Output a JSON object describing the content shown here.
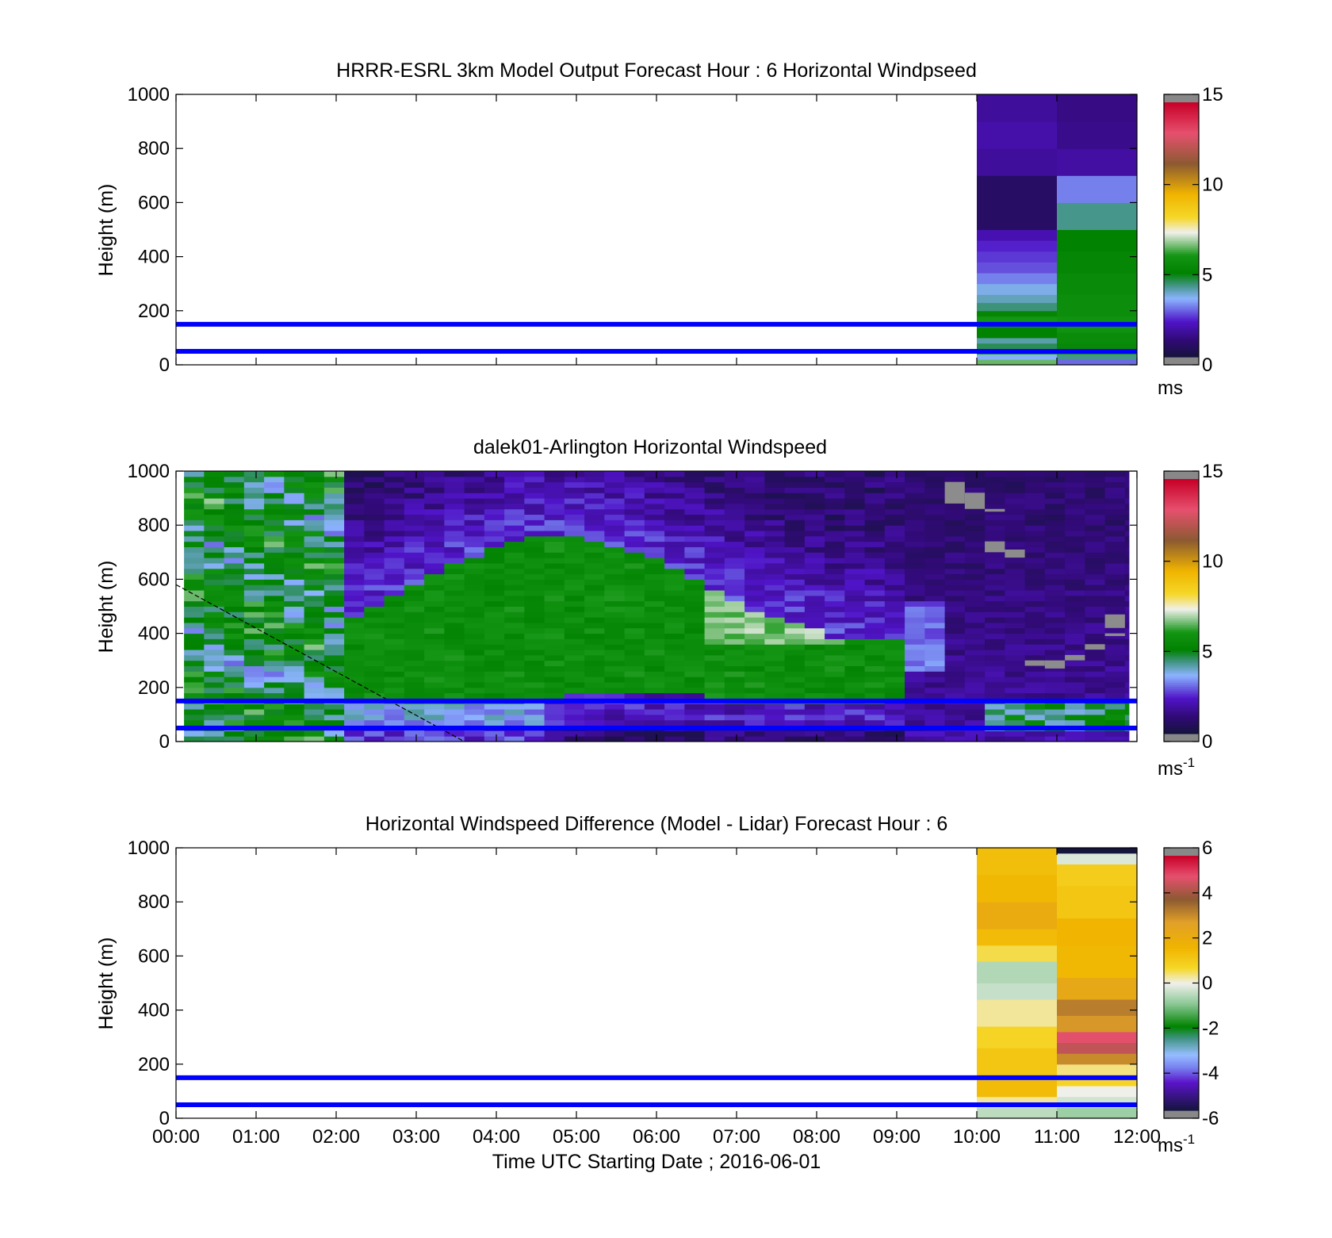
{
  "figure": {
    "xlabel": "Time UTC  Starting Date ; 2016-06-01",
    "x_ticks": [
      "00:00",
      "01:00",
      "02:00",
      "03:00",
      "04:00",
      "05:00",
      "06:00",
      "07:00",
      "08:00",
      "09:00",
      "10:00",
      "11:00",
      "12:00"
    ],
    "y_ticks": [
      "0",
      "200",
      "400",
      "600",
      "800",
      "1000"
    ],
    "ylabel": "Height (m)",
    "reference_lines_m": [
      50,
      150
    ],
    "reference_line_color": "#0000ff"
  },
  "chart_data": [
    {
      "type": "heatmap",
      "title": "HRRR-ESRL 3km Model Output   Forecast Hour : 6 Horizontal Windpseed",
      "ylabel": "Height (m)",
      "xlim_hours": [
        0,
        12
      ],
      "ylim": [
        0,
        1000
      ],
      "colorbar": {
        "min": 0,
        "max": 15,
        "ticks": [
          "0",
          "5",
          "10",
          "15"
        ],
        "unit": "ms",
        "unit_sup": "",
        "palette": "windspeed"
      },
      "columns": [
        {
          "x_start_h": 10,
          "x_end_h": 11,
          "cells": [
            [
              0,
              20,
              6.5
            ],
            [
              20,
              40,
              3.5
            ],
            [
              40,
              60,
              5.5
            ],
            [
              60,
              80,
              4.5
            ],
            [
              80,
              100,
              4.0
            ],
            [
              100,
              140,
              5.0
            ],
            [
              140,
              180,
              6.0
            ],
            [
              180,
              200,
              5.2
            ],
            [
              200,
              230,
              4.3
            ],
            [
              230,
              260,
              3.9
            ],
            [
              260,
              300,
              3.6
            ],
            [
              300,
              340,
              3.0
            ],
            [
              340,
              380,
              2.6
            ],
            [
              380,
              420,
              2.4
            ],
            [
              420,
              460,
              2.2
            ],
            [
              460,
              500,
              1.8
            ],
            [
              500,
              700,
              0.7
            ],
            [
              700,
              800,
              1.5
            ],
            [
              800,
              900,
              1.7
            ],
            [
              900,
              1000,
              1.5
            ]
          ]
        },
        {
          "x_start_h": 11,
          "x_end_h": 12,
          "cells": [
            [
              0,
              20,
              2.8
            ],
            [
              20,
              40,
              4.2
            ],
            [
              40,
              60,
              5.5
            ],
            [
              60,
              80,
              5.3
            ],
            [
              80,
              120,
              5.5
            ],
            [
              120,
              180,
              5.8
            ],
            [
              180,
              260,
              5.6
            ],
            [
              260,
              340,
              5.4
            ],
            [
              340,
              420,
              5.2
            ],
            [
              420,
              500,
              5.0
            ],
            [
              500,
              600,
              4.2
            ],
            [
              600,
              700,
              3.0
            ],
            [
              700,
              800,
              1.6
            ],
            [
              800,
              900,
              1.3
            ],
            [
              900,
              1000,
              1.2
            ]
          ]
        }
      ]
    },
    {
      "type": "heatmap",
      "title": "dalek01-Arlington  Horizontal Windspeed",
      "ylabel": "Height (m)",
      "xlim_hours": [
        0,
        12
      ],
      "ylim": [
        0,
        1000
      ],
      "colorbar": {
        "min": 0,
        "max": 15,
        "ticks": [
          "0",
          "5",
          "10",
          "15"
        ],
        "unit": "ms",
        "unit_sup": "-1",
        "palette": "windspeed"
      },
      "lidar_range_h": [
        0.1,
        11.9
      ],
      "missing_patches": [
        {
          "x_h": [
            9.6,
            9.85
          ],
          "y": [
            880,
            960
          ]
        },
        {
          "x_h": [
            9.85,
            10.1
          ],
          "y": [
            860,
            920
          ]
        },
        {
          "x_h": [
            10.1,
            10.35
          ],
          "y": [
            850,
            860
          ]
        },
        {
          "x_h": [
            10.1,
            10.35
          ],
          "y": [
            700,
            740
          ]
        },
        {
          "x_h": [
            10.35,
            10.6
          ],
          "y": [
            680,
            710
          ]
        },
        {
          "x_h": [
            10.6,
            10.85
          ],
          "y": [
            280,
            300
          ]
        },
        {
          "x_h": [
            10.85,
            11.1
          ],
          "y": [
            270,
            300
          ]
        },
        {
          "x_h": [
            11.1,
            11.35
          ],
          "y": [
            300,
            320
          ]
        },
        {
          "x_h": [
            11.35,
            11.6
          ],
          "y": [
            340,
            360
          ]
        },
        {
          "x_h": [
            11.6,
            11.85
          ],
          "y": [
            420,
            470
          ]
        },
        {
          "x_h": [
            11.6,
            11.85
          ],
          "y": [
            390,
            400
          ]
        }
      ],
      "dashed_line": {
        "x_h": [
          0,
          3.6
        ],
        "y": [
          580,
          0
        ]
      }
    },
    {
      "type": "heatmap",
      "title": "Horizontal Windspeed Difference (Model - Lidar) Forecast Hour : 6",
      "ylabel": "Height (m)",
      "xlabel": "Time UTC  Starting Date ; 2016-06-01",
      "xlim_hours": [
        0,
        12
      ],
      "ylim": [
        0,
        1000
      ],
      "colorbar": {
        "min": -6,
        "max": 6,
        "ticks": [
          "-6",
          "-4",
          "-2",
          "0",
          "2",
          "4",
          "6"
        ],
        "unit": "ms",
        "unit_sup": "-1",
        "palette": "difference"
      },
      "columns": [
        {
          "x_start_h": 10,
          "x_end_h": 11,
          "cells": [
            [
              0,
              40,
              -0.5
            ],
            [
              40,
              80,
              0.3
            ],
            [
              80,
              140,
              1.5
            ],
            [
              140,
              260,
              1.2
            ],
            [
              260,
              340,
              0.8
            ],
            [
              340,
              440,
              0.3
            ],
            [
              440,
              500,
              -0.4
            ],
            [
              500,
              580,
              -0.6
            ],
            [
              580,
              640,
              0.6
            ],
            [
              640,
              700,
              1.5
            ],
            [
              700,
              800,
              2.2
            ],
            [
              800,
              900,
              1.6
            ],
            [
              900,
              1000,
              1.4
            ]
          ]
        },
        {
          "x_start_h": 11,
          "x_end_h": 12,
          "cells": [
            [
              0,
              40,
              -0.8
            ],
            [
              40,
              80,
              -0.3
            ],
            [
              80,
              120,
              0.0
            ],
            [
              120,
              160,
              0.8
            ],
            [
              160,
              200,
              0.4
            ],
            [
              200,
              240,
              3.2
            ],
            [
              240,
              280,
              4.6
            ],
            [
              280,
              320,
              5.0
            ],
            [
              320,
              380,
              3.0
            ],
            [
              380,
              440,
              3.4
            ],
            [
              440,
              520,
              2.4
            ],
            [
              520,
              640,
              1.6
            ],
            [
              640,
              740,
              1.7
            ],
            [
              740,
              860,
              1.2
            ],
            [
              860,
              940,
              1.0
            ],
            [
              940,
              980,
              -0.2
            ],
            [
              980,
              1000,
              -6.0
            ]
          ]
        }
      ]
    }
  ]
}
